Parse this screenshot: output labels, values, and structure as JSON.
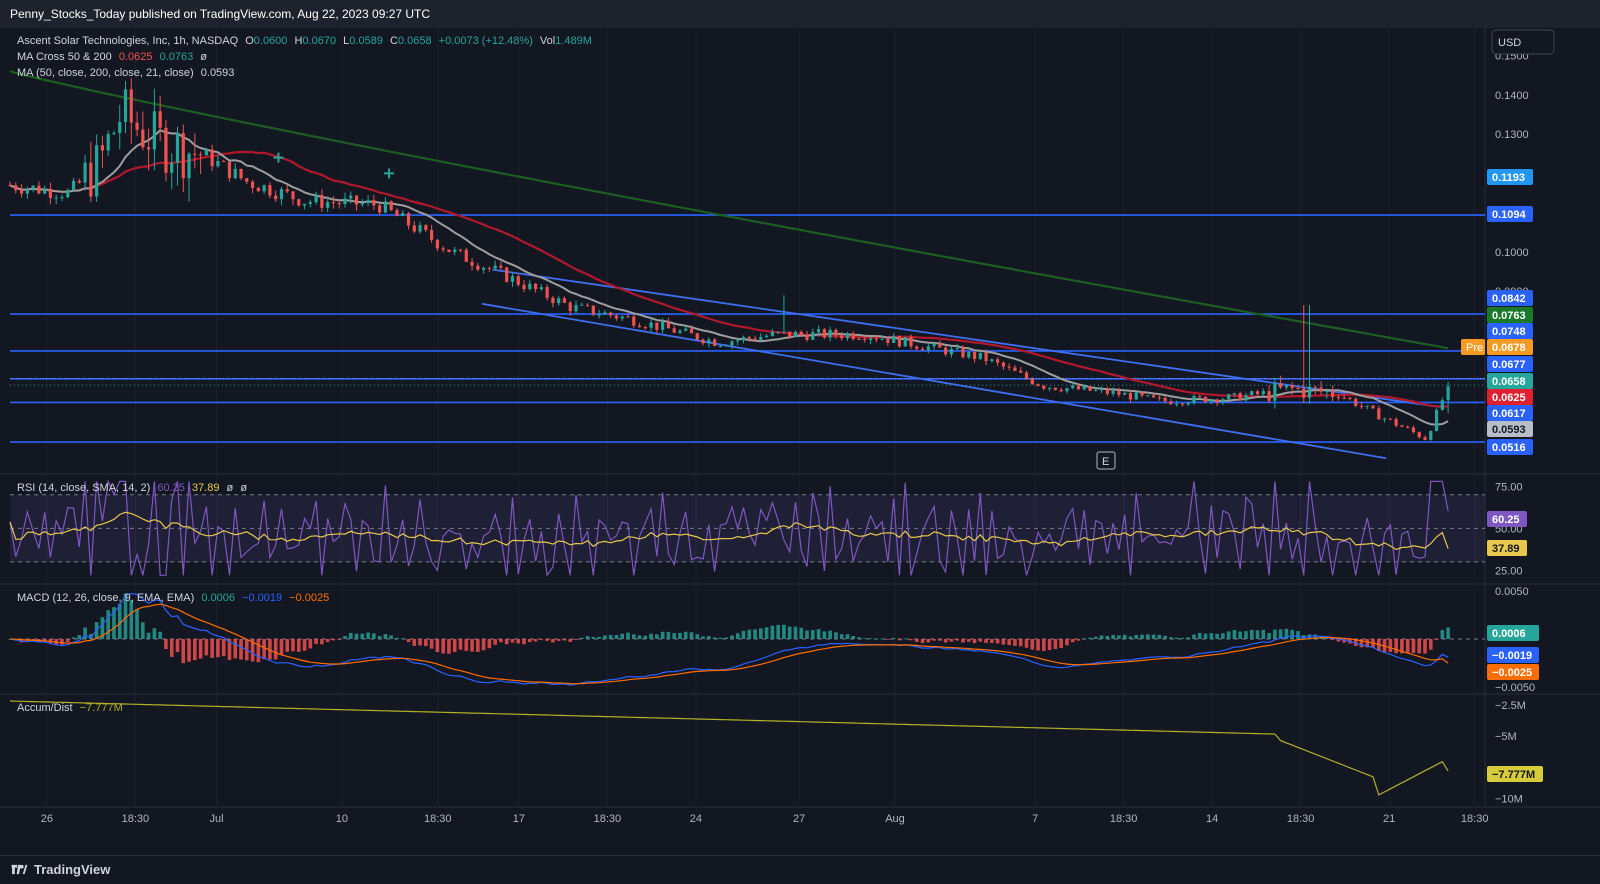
{
  "header": {
    "published": "Penny_Stocks_Today published on TradingView.com, Aug 22, 2023 09:27 UTC"
  },
  "currency_button": "USD",
  "legend": {
    "symbol": "Ascent Solar Technologies, Inc, 1h, NASDAQ",
    "o_label": "O",
    "o": "0.0600",
    "h_label": "H",
    "h": "0.0670",
    "l_label": "L",
    "l": "0.0589",
    "c_label": "C",
    "c": "0.0658",
    "change": "+0.0073 (+12.48%)",
    "vol_label": "Vol",
    "vol": "1.489M",
    "ma_cross_label": "MA Cross 50 & 200",
    "ma_cross_v1": "0.0625",
    "ma_cross_v2": "0.0763",
    "ma_cross_eye": "ø",
    "ma_label": "MA (50, close, 200, close, 21, close)",
    "ma_v": "0.0593"
  },
  "colors": {
    "bg": "#131722",
    "up": "#26a69a",
    "down": "#ef5350",
    "hline": "#2962ff",
    "ma50": "#b2182b",
    "ma200": "#1b5e20",
    "ma21": "#9e9e9e",
    "rsi": "#7e57c2",
    "rsi_sma": "#e6c84a",
    "macd": "#2962ff",
    "signal": "#ff6d00",
    "ad": "#b5b028"
  },
  "price_axis": {
    "ticks": [
      "0.1500",
      "0.1400",
      "0.1300",
      "0.1000",
      "0.0900",
      "0.0516"
    ]
  },
  "price_badges": [
    {
      "text": "0.1193",
      "bg": "#2196f3",
      "fg": "#ffffff"
    },
    {
      "text": "0.1094",
      "bg": "#2962ff",
      "fg": "#ffffff"
    },
    {
      "text": "0.0842",
      "bg": "#2962ff",
      "fg": "#ffffff"
    },
    {
      "text": "0.0763",
      "bg": "#1b7a2a",
      "fg": "#ffffff"
    },
    {
      "text": "0.0748",
      "bg": "#2962ff",
      "fg": "#ffffff"
    },
    {
      "text": "0.0678",
      "bg": "#f59a23",
      "fg": "#ffffff"
    },
    {
      "text": "0.0677",
      "bg": "#2962ff",
      "fg": "#ffffff"
    },
    {
      "text": "0.0658",
      "bg": "#26a69a",
      "fg": "#ffffff"
    },
    {
      "text": "0.0625",
      "bg": "#e0202f",
      "fg": "#ffffff"
    },
    {
      "text": "0.0617",
      "bg": "#2962ff",
      "fg": "#ffffff"
    },
    {
      "text": "0.0593",
      "bg": "#b8bec8",
      "fg": "#131722"
    },
    {
      "text": "0.0516",
      "bg": "#2962ff",
      "fg": "#ffffff"
    }
  ],
  "pre_label": "Pre",
  "earnings_marker": "E",
  "rsi": {
    "label": "RSI (14, close, SMA, 14, 2)",
    "v1": "60.25",
    "v2": "37.89",
    "eye1": "ø",
    "eye2": "ø",
    "ticks": [
      "75.00",
      "50.00",
      "25.00"
    ],
    "badges": [
      "60.25",
      "37.89"
    ]
  },
  "macd": {
    "label": "MACD (12, 26, close, 9, EMA, EMA)",
    "v1": "0.0006",
    "v2": "−0.0019",
    "v3": "−0.0025",
    "ticks": [
      "0.0050",
      "−0.0050"
    ],
    "badges": [
      "0.0006",
      "−0.0019",
      "−0.0025"
    ]
  },
  "ad": {
    "label": "Accum/Dist",
    "v": "−7.777M",
    "ticks": [
      "−2.5M",
      "−5M",
      "−10M"
    ],
    "badge": "−7.777M"
  },
  "time_axis": [
    "26",
    "18:30",
    "Jul",
    "10",
    "18:30",
    "17",
    "18:30",
    "24",
    "27",
    "Aug",
    "7",
    "18:30",
    "14",
    "18:30",
    "21",
    "18:30"
  ],
  "footer": {
    "brand": "TradingView"
  },
  "chart_data": {
    "type": "candlestick",
    "title": "Ascent Solar Technologies, Inc, 1h, NASDAQ",
    "timeframe": "1h",
    "last_ohlc": {
      "open": 0.06,
      "high": 0.067,
      "low": 0.0589,
      "close": 0.0658,
      "volume": "1.489M"
    },
    "price_close_path": [
      [
        0,
        0.117
      ],
      [
        0.04,
        0.115
      ],
      [
        0.06,
        0.122
      ],
      [
        0.075,
        0.135
      ],
      [
        0.1,
        0.128
      ],
      [
        0.13,
        0.125
      ],
      [
        0.16,
        0.118
      ],
      [
        0.2,
        0.113
      ],
      [
        0.25,
        0.112
      ],
      [
        0.3,
        0.1
      ],
      [
        0.33,
        0.095
      ],
      [
        0.38,
        0.086
      ],
      [
        0.42,
        0.083
      ],
      [
        0.48,
        0.077
      ],
      [
        0.52,
        0.079
      ],
      [
        0.58,
        0.079
      ],
      [
        0.62,
        0.076
      ],
      [
        0.66,
        0.073
      ],
      [
        0.7,
        0.066
      ],
      [
        0.75,
        0.064
      ],
      [
        0.78,
        0.062
      ],
      [
        0.83,
        0.063
      ],
      [
        0.87,
        0.065
      ],
      [
        0.9,
        0.064
      ],
      [
        0.93,
        0.058
      ],
      [
        0.96,
        0.0525
      ],
      [
        0.975,
        0.0658
      ]
    ],
    "horizontal_levels": [
      0.1094,
      0.0842,
      0.0748,
      0.0677,
      0.0617,
      0.0516
    ],
    "moving_averages": [
      {
        "name": "MA 50",
        "last": 0.0625
      },
      {
        "name": "MA 200",
        "last": 0.0763
      },
      {
        "name": "MA 21",
        "last": 0.0593
      }
    ],
    "rsi": {
      "last": 60.25,
      "sma": 37.89,
      "levels": [
        75,
        50,
        25
      ]
    },
    "macd": {
      "macd": -0.0019,
      "signal": -0.0025,
      "histogram": 0.0006
    },
    "accum_dist": {
      "last": "-7.777M"
    },
    "x_ticks": [
      "26",
      "18:30",
      "Jul",
      "10",
      "18:30",
      "17",
      "18:30",
      "24",
      "27",
      "Aug",
      "7",
      "18:30",
      "14",
      "18:30",
      "21",
      "18:30"
    ]
  }
}
